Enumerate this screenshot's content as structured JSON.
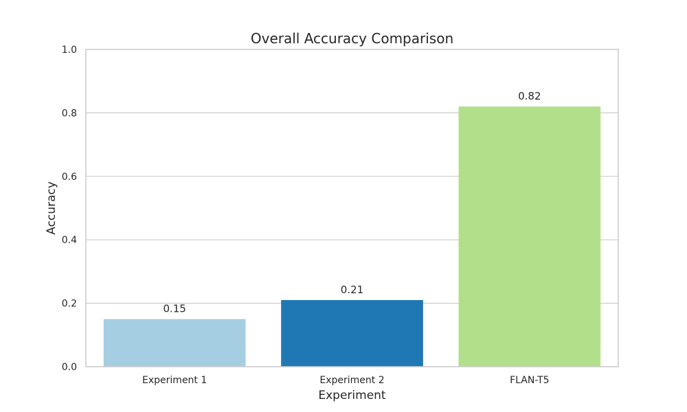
{
  "chart_data": {
    "type": "bar",
    "title": "Overall Accuracy Comparison",
    "xlabel": "Experiment",
    "ylabel": "Accuracy",
    "categories": [
      "Experiment 1",
      "Experiment 2",
      "FLAN-T5"
    ],
    "values": [
      0.15,
      0.21,
      0.82
    ],
    "value_labels": [
      "0.15",
      "0.21",
      "0.82"
    ],
    "bar_colors": [
      "#a6cee3",
      "#1f78b4",
      "#b2df8a"
    ],
    "ylim": [
      0,
      1.0
    ],
    "yticks": [
      0.0,
      0.2,
      0.4,
      0.6,
      0.8,
      1.0
    ],
    "ytick_labels": [
      "0.0",
      "0.2",
      "0.4",
      "0.6",
      "0.8",
      "1.0"
    ],
    "grid": true,
    "background": "#ffffff"
  }
}
